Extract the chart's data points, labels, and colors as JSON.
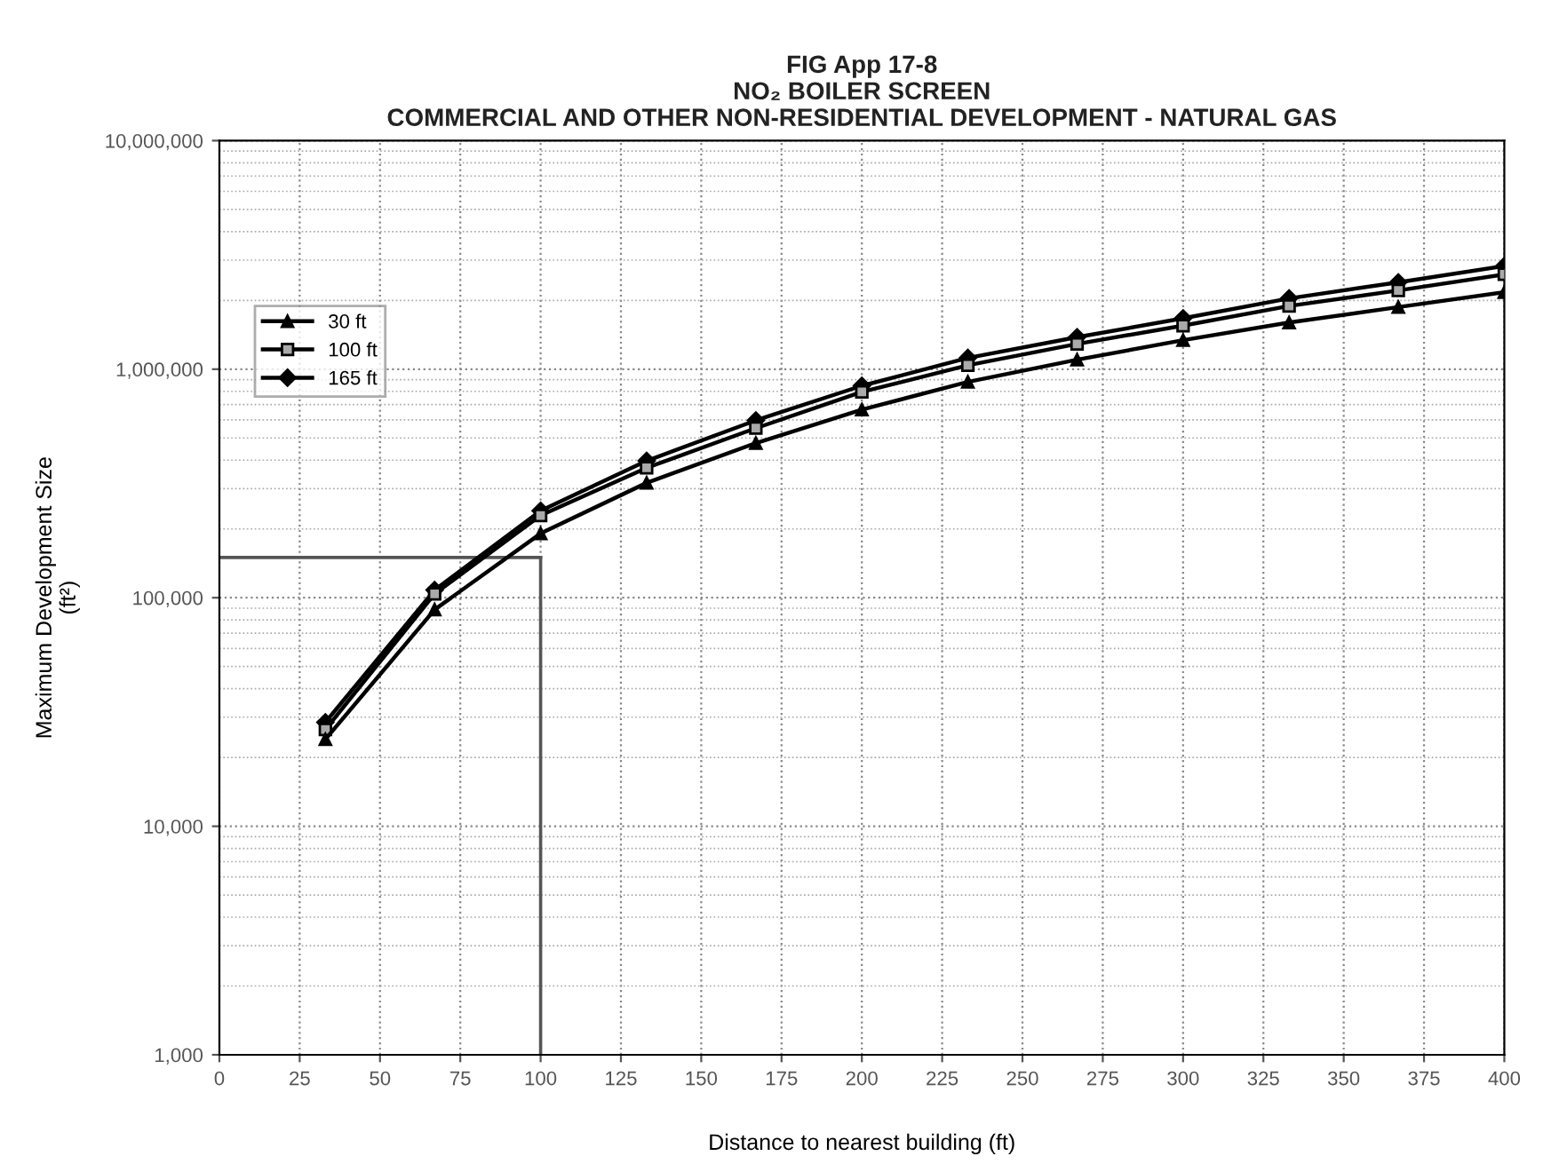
{
  "chart_data": {
    "type": "line",
    "title": "FIG App 17-8\nNO₂ BOILER SCREEN\nCOMMERCIAL AND OTHER NON-RESIDENTIAL DEVELOPMENT - NATURAL GAS",
    "xlabel": "Distance to nearest building (ft)",
    "ylabel": "Maximum Development Size\n(ft²)",
    "x": [
      33,
      67,
      100,
      133,
      167,
      200,
      233,
      267,
      300,
      333,
      367,
      400
    ],
    "series": [
      {
        "name": "30 ft",
        "color": "#000000",
        "marker": "triangle",
        "values": [
          24000,
          88700,
          191000,
          318000,
          475000,
          665000,
          880000,
          1100000,
          1340000,
          1600000,
          1870000,
          2170000
        ]
      },
      {
        "name": "100 ft",
        "color": "#000000",
        "marker": "square",
        "values": [
          26500,
          104000,
          229000,
          370000,
          552000,
          795000,
          1040000,
          1290000,
          1550000,
          1890000,
          2210000,
          2600000
        ]
      },
      {
        "name": "165 ft",
        "color": "#000000",
        "marker": "diamond",
        "values": [
          28500,
          108000,
          240000,
          397000,
          597000,
          846000,
          1120000,
          1380000,
          1670000,
          2040000,
          2400000,
          2830000
        ]
      }
    ],
    "log": "y",
    "xlim": [
      0,
      400
    ],
    "ylim": [
      1000,
      10000000
    ],
    "xticks": [
      0,
      25,
      50,
      75,
      100,
      125,
      150,
      175,
      200,
      225,
      250,
      275,
      300,
      325,
      350,
      375,
      400
    ],
    "yticks": [
      {
        "value": 1000,
        "label": "1,000"
      },
      {
        "value": 10000,
        "label": "10,000"
      },
      {
        "value": 100000,
        "label": "100,000"
      },
      {
        "value": 1000000,
        "label": "1,000,000"
      },
      {
        "value": 10000000,
        "label": "10,000,000"
      }
    ],
    "ref_lines": [
      {
        "axis": "x",
        "value": 100,
        "color": "#555555"
      },
      {
        "axis": "y",
        "value": 150000,
        "color": "#555555"
      }
    ],
    "grid": true,
    "legend": "top left",
    "line_style": "solid"
  }
}
